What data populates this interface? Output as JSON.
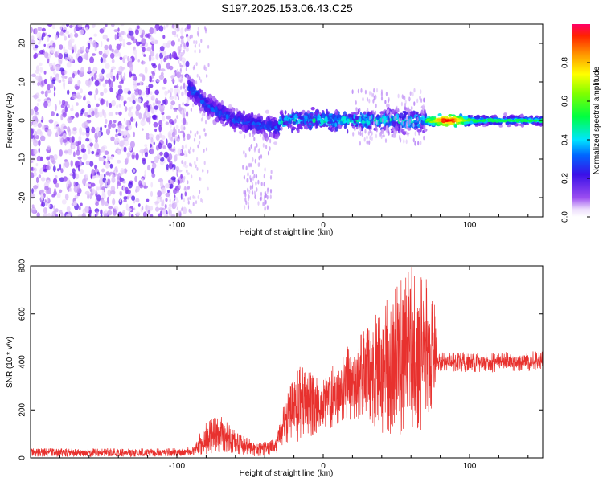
{
  "title": "S197.2025.153.06.43.C25",
  "colors": {
    "snr_line": "#e8312e",
    "frame": "#000000",
    "spectrogram_low": "#7a22f0",
    "spectrogram_peak": "#ff0000"
  },
  "chart_data": [
    {
      "type": "heatmap",
      "name": "spectrogram",
      "title": "",
      "xlabel": "Height of straight line (km)",
      "ylabel": "Frequency (Hz)",
      "xlim": [
        -200,
        150
      ],
      "ylim": [
        -25,
        25
      ],
      "x_ticks": [
        -100,
        0,
        100
      ],
      "y_ticks": [
        -20,
        -10,
        0,
        10,
        20
      ],
      "grid": false,
      "colorbar": {
        "label": "Normalized spectral amplitude",
        "range": [
          0,
          1
        ],
        "ticks": [
          0.0,
          0.2,
          0.4,
          0.6,
          0.8
        ],
        "colormap": "hsv-reversed (violet low -> blue -> cyan -> green -> yellow -> orange -> red high)"
      },
      "regions": [
        {
          "x_range": [
            -200,
            -92
          ],
          "freq_range": [
            -25,
            25
          ],
          "amplitude_range": [
            0.0,
            0.25
          ],
          "description": "broadband scattered noise"
        },
        {
          "x_range": [
            -92,
            -30
          ],
          "freq_center_trend": [
            [
              -92,
              9
            ],
            [
              -80,
              4
            ],
            [
              -60,
              0
            ],
            [
              -45,
              -1
            ],
            [
              -30,
              -2
            ]
          ],
          "amplitude_range": [
            0.1,
            0.4
          ]
        },
        {
          "x_range": [
            -30,
            70
          ],
          "freq_center": 0,
          "amplitude_range": [
            0.1,
            0.55
          ]
        },
        {
          "x_range": [
            70,
            150
          ],
          "freq_center": 0,
          "amplitude_range": [
            0.3,
            1.0
          ],
          "peak_x": 85
        }
      ]
    },
    {
      "type": "line",
      "name": "snr",
      "title": "",
      "xlabel": "Height of straight line (km)",
      "ylabel": "SNR (10 * v/v)",
      "xlim": [
        -200,
        150
      ],
      "ylim": [
        0,
        800
      ],
      "x_ticks": [
        -100,
        0,
        100
      ],
      "y_ticks": [
        0,
        200,
        400,
        600,
        800
      ],
      "grid": false,
      "series": [
        {
          "envelope": [
            {
              "x": -200,
              "low": 5,
              "high": 40
            },
            {
              "x": -110,
              "low": 5,
              "high": 40
            },
            {
              "x": -90,
              "low": 8,
              "high": 45
            },
            {
              "x": -80,
              "low": 15,
              "high": 150
            },
            {
              "x": -70,
              "low": 20,
              "high": 190
            },
            {
              "x": -60,
              "low": 15,
              "high": 110
            },
            {
              "x": -45,
              "low": 5,
              "high": 60
            },
            {
              "x": -33,
              "low": 15,
              "high": 80
            },
            {
              "x": -25,
              "low": 50,
              "high": 290
            },
            {
              "x": -15,
              "low": 60,
              "high": 390
            },
            {
              "x": 0,
              "low": 100,
              "high": 330
            },
            {
              "x": 15,
              "low": 150,
              "high": 470
            },
            {
              "x": 30,
              "low": 150,
              "high": 560
            },
            {
              "x": 45,
              "low": 80,
              "high": 700
            },
            {
              "x": 60,
              "low": 50,
              "high": 800
            },
            {
              "x": 70,
              "low": 150,
              "high": 780
            },
            {
              "x": 76,
              "low": 180,
              "high": 650
            },
            {
              "x": 78,
              "low": 360,
              "high": 440
            },
            {
              "x": 120,
              "low": 355,
              "high": 440
            },
            {
              "x": 150,
              "low": 365,
              "high": 450
            }
          ]
        }
      ]
    }
  ]
}
